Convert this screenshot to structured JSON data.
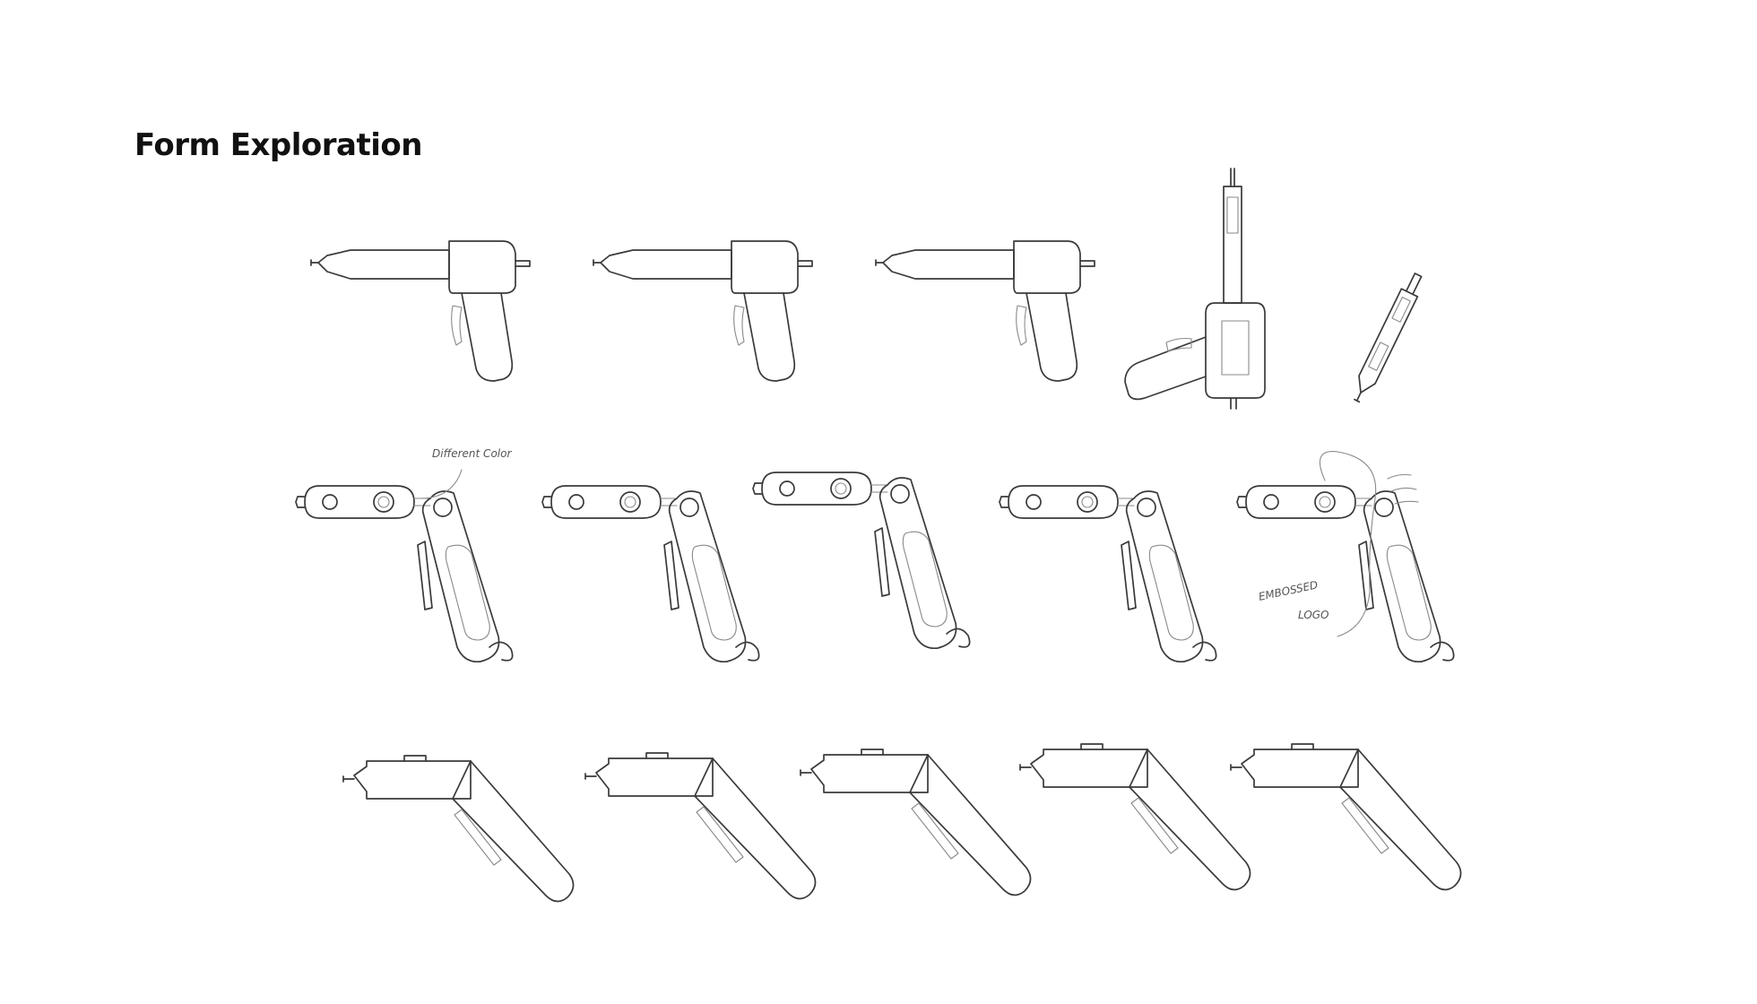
{
  "page": {
    "title": "Form Exploration"
  },
  "annotations": {
    "different_color": "Different Color",
    "embossed": "EMBOSSED",
    "logo": "LOGO"
  },
  "rows": [
    {
      "kind": "pistol-side-views",
      "count": 5
    },
    {
      "kind": "folding-top-views",
      "count": 5
    },
    {
      "kind": "angled-body-views",
      "count": 5
    }
  ]
}
